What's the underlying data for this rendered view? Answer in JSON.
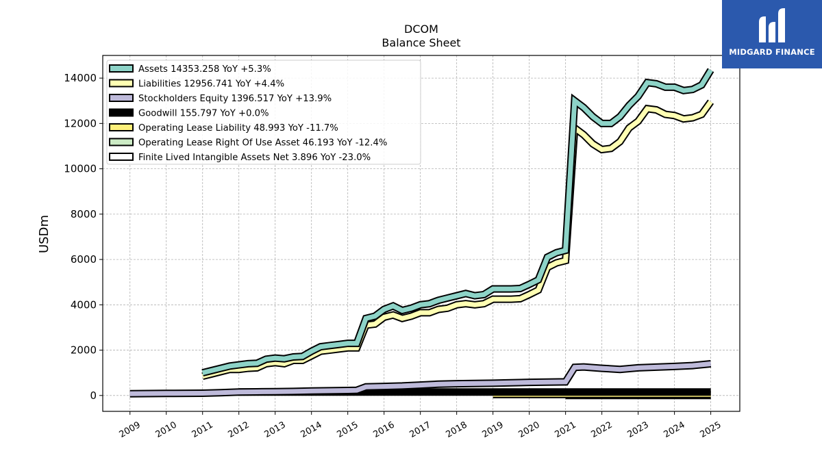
{
  "chart_data": {
    "type": "line",
    "title": "DCOM",
    "subtitle": "Balance  Sheet",
    "ylabel": "USDm",
    "xlabel": "",
    "xlim": [
      2008.25,
      2025.8
    ],
    "ylim": [
      -700,
      15000
    ],
    "x_ticks": [
      "2009",
      "2010",
      "2011",
      "2012",
      "2013",
      "2014",
      "2015",
      "2016",
      "2017",
      "2018",
      "2019",
      "2020",
      "2021",
      "2022",
      "2023",
      "2024",
      "2025"
    ],
    "y_ticks": [
      0,
      2000,
      4000,
      6000,
      8000,
      10000,
      12000,
      14000
    ],
    "grid": true,
    "legend_position": "top-left",
    "series": [
      {
        "name": "Assets  14353.258 YoY +5.3%",
        "color": "#8dd3c7",
        "x": [
          2011.0,
          2011.25,
          2011.5,
          2011.75,
          2012.0,
          2012.25,
          2012.5,
          2012.75,
          2013.0,
          2013.25,
          2013.5,
          2013.75,
          2014.0,
          2014.25,
          2014.5,
          2014.75,
          2015.0,
          2015.25,
          2015.5,
          2015.75,
          2016.0,
          2016.25,
          2016.5,
          2016.75,
          2017.0,
          2017.25,
          2017.5,
          2017.75,
          2018.0,
          2018.25,
          2018.5,
          2018.75,
          2019.0,
          2019.25,
          2019.5,
          2019.75,
          2020.0,
          2020.25,
          2020.5,
          2020.75,
          2021.0,
          2021.25,
          2021.5,
          2021.75,
          2022.0,
          2022.25,
          2022.5,
          2022.75,
          2023.0,
          2023.25,
          2023.5,
          2023.75,
          2024.0,
          2024.25,
          2024.5,
          2024.75,
          2025.0
        ],
        "values": [
          1000,
          1100,
          1200,
          1300,
          1350,
          1400,
          1420,
          1600,
          1650,
          1620,
          1700,
          1720,
          1950,
          2150,
          2200,
          2250,
          2300,
          2300,
          3400,
          3500,
          3800,
          3950,
          3750,
          3850,
          4000,
          4050,
          4200,
          4300,
          4400,
          4500,
          4400,
          4450,
          4700,
          4700,
          4700,
          4720,
          4900,
          5100,
          6100,
          6300,
          6400,
          13000,
          12700,
          12300,
          12000,
          12000,
          12300,
          12800,
          13200,
          13800,
          13750,
          13600,
          13600,
          13450,
          13500,
          13700,
          14353
        ]
      },
      {
        "name": "Liabilities  12956.741 YoY +4.4%",
        "color": "#ffffb3",
        "x": [
          2011.0,
          2011.25,
          2011.5,
          2011.75,
          2012.0,
          2012.25,
          2012.5,
          2012.75,
          2013.0,
          2013.25,
          2013.5,
          2013.75,
          2014.0,
          2014.25,
          2014.5,
          2014.75,
          2015.0,
          2015.25,
          2015.5,
          2015.75,
          2016.0,
          2016.25,
          2016.5,
          2016.75,
          2017.0,
          2017.25,
          2017.5,
          2017.75,
          2018.0,
          2018.25,
          2018.5,
          2018.75,
          2019.0,
          2019.25,
          2019.5,
          2019.75,
          2020.0,
          2020.25,
          2020.5,
          2020.75,
          2021.0,
          2021.25,
          2021.5,
          2021.75,
          2022.0,
          2022.25,
          2022.5,
          2022.75,
          2023.0,
          2023.25,
          2023.5,
          2023.75,
          2024.0,
          2024.25,
          2024.5,
          2024.75,
          2025.0
        ],
        "values": [
          850,
          950,
          1050,
          1150,
          1150,
          1200,
          1220,
          1400,
          1450,
          1400,
          1550,
          1550,
          1750,
          1950,
          2000,
          2050,
          2100,
          2100,
          3100,
          3150,
          3450,
          3550,
          3400,
          3500,
          3650,
          3650,
          3800,
          3850,
          4000,
          4050,
          4000,
          4050,
          4250,
          4250,
          4250,
          4270,
          4450,
          4650,
          5650,
          5850,
          5950,
          11800,
          11500,
          11100,
          10850,
          10900,
          11200,
          11800,
          12100,
          12650,
          12600,
          12400,
          12350,
          12200,
          12250,
          12400,
          12957
        ]
      },
      {
        "name": "Stockholders Equity  1396.517 YoY +13.9%",
        "color": "#bebada",
        "x": [
          2009.0,
          2010.0,
          2011.0,
          2011.5,
          2012.0,
          2012.5,
          2013.0,
          2013.5,
          2014.0,
          2014.5,
          2015.0,
          2015.25,
          2015.5,
          2016.0,
          2016.5,
          2017.0,
          2017.5,
          2018.0,
          2018.5,
          2019.0,
          2019.5,
          2020.0,
          2020.5,
          2021.0,
          2021.25,
          2021.5,
          2022.0,
          2022.5,
          2023.0,
          2023.5,
          2024.0,
          2024.5,
          2025.0
        ],
        "values": [
          80,
          90,
          100,
          120,
          150,
          160,
          170,
          180,
          200,
          210,
          220,
          230,
          380,
          400,
          420,
          460,
          500,
          520,
          530,
          540,
          560,
          580,
          590,
          600,
          1240,
          1260,
          1200,
          1150,
          1220,
          1250,
          1280,
          1320,
          1397
        ]
      },
      {
        "name": "Goodwill  155.797 YoY +0.0%",
        "color": "#000000",
        "x": [
          2012.0,
          2025.0
        ],
        "values": [
          155.797,
          155.797
        ]
      },
      {
        "name": "Operating Lease Liability  48.993 YoY -11.7%",
        "color": "#fdf07a",
        "x": [
          2019.0,
          2025.0
        ],
        "values": [
          48.993,
          48.993
        ]
      },
      {
        "name": "Operating Lease Right Of Use Asset  46.193 YoY -12.4%",
        "color": "#ccebc5",
        "x": [
          2019.0,
          2021.0
        ],
        "values": [
          46.193,
          46.193
        ]
      },
      {
        "name": "Finite Lived Intangible Assets Net  3.896 YoY -23.0%",
        "color": "#ffffff",
        "x": [
          2021.0,
          2025.0
        ],
        "values": [
          3.896,
          3.896
        ]
      }
    ]
  },
  "logo": {
    "name": "MIDGARD FINANCE"
  }
}
